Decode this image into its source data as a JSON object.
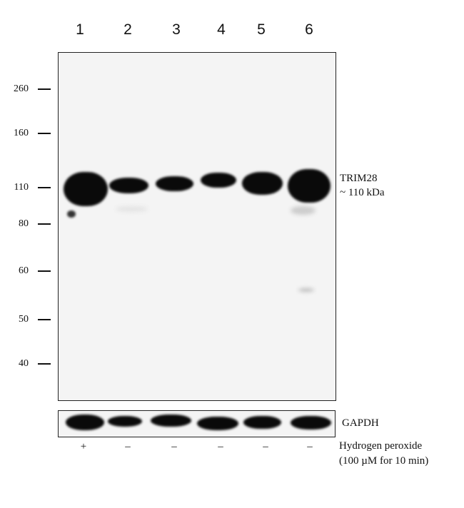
{
  "lanes": [
    "1",
    "2",
    "3",
    "4",
    "5",
    "6"
  ],
  "markers": [
    "260",
    "160",
    "110",
    "80",
    "60",
    "50",
    "40"
  ],
  "target_label": {
    "name": "TRIM28",
    "size": "~ 110 kDa"
  },
  "loading_control": "GAPDH",
  "treatment": {
    "line1": "Hydrogen peroxide",
    "line2": "(100 µM for 10 min)",
    "signs": [
      "+",
      "–",
      "–",
      "–",
      "–",
      "–"
    ]
  }
}
